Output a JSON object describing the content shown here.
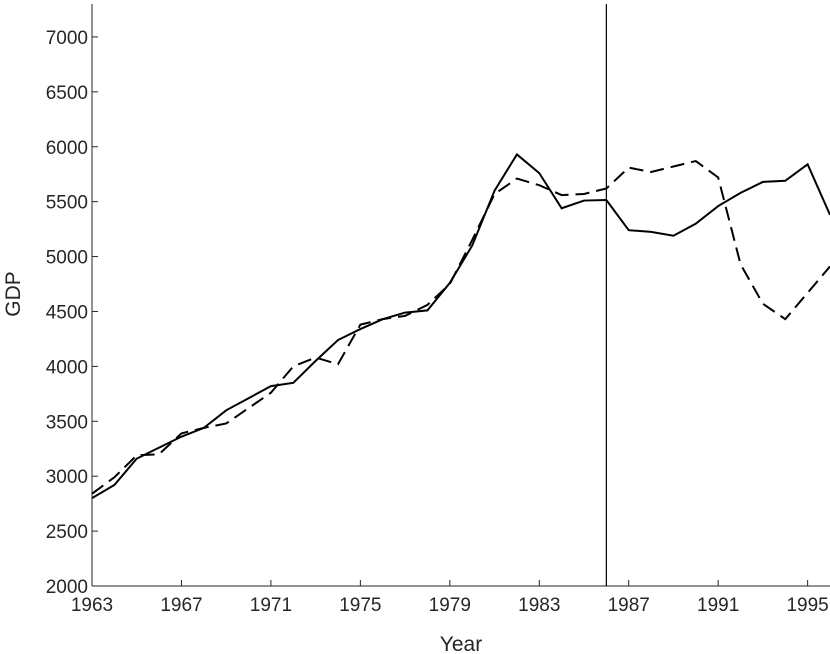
{
  "chart_data": {
    "type": "line",
    "xlabel": "Year",
    "ylabel": "GDP",
    "xlim": [
      1963,
      1996
    ],
    "ylim": [
      2000,
      7300
    ],
    "xticks": [
      1963,
      1967,
      1971,
      1975,
      1979,
      1983,
      1987,
      1991,
      1995
    ],
    "yticks": [
      2000,
      2500,
      3000,
      3500,
      4000,
      4500,
      5000,
      5500,
      6000,
      6500,
      7000
    ],
    "vline": 1986,
    "grid": false,
    "x": [
      1963,
      1964,
      1965,
      1966,
      1967,
      1968,
      1969,
      1970,
      1971,
      1972,
      1973,
      1974,
      1975,
      1976,
      1977,
      1978,
      1979,
      1980,
      1981,
      1982,
      1983,
      1984,
      1985,
      1986,
      1987,
      1988,
      1989,
      1990,
      1991,
      1992,
      1993,
      1994,
      1995,
      1996
    ],
    "series": [
      {
        "style": "solid",
        "values": [
          2800,
          2920,
          3160,
          3260,
          3360,
          3440,
          3600,
          3710,
          3820,
          3850,
          4050,
          4240,
          4340,
          4430,
          4490,
          4510,
          4760,
          5100,
          5600,
          5930,
          5760,
          5440,
          5510,
          5515,
          5240,
          5225,
          5190,
          5300,
          5460,
          5580,
          5680,
          5690,
          5840,
          5380
        ]
      },
      {
        "style": "dashed",
        "values": [
          2840,
          2990,
          3190,
          3200,
          3390,
          3440,
          3480,
          3620,
          3760,
          4000,
          4080,
          4020,
          4380,
          4430,
          4460,
          4560,
          4750,
          5150,
          5570,
          5710,
          5650,
          5560,
          5570,
          5620,
          5810,
          5770,
          5820,
          5870,
          5720,
          4930,
          4570,
          4430,
          4670,
          4910
        ]
      }
    ]
  }
}
